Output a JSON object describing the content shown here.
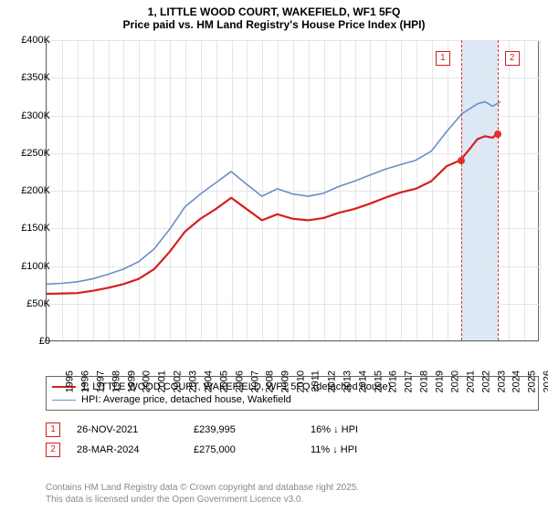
{
  "title": {
    "line1": "1, LITTLE WOOD COURT, WAKEFIELD, WF1 5FQ",
    "line2": "Price paid vs. HM Land Registry's House Price Index (HPI)"
  },
  "chart": {
    "type": "line",
    "background_color": "#ffffff",
    "grid_color": "#e5e5e5",
    "border_color": "#666666",
    "x_axis": {
      "min": 1995,
      "max": 2027,
      "ticks": [
        1995,
        1996,
        1997,
        1998,
        1999,
        2000,
        2001,
        2002,
        2003,
        2004,
        2005,
        2006,
        2007,
        2008,
        2009,
        2010,
        2011,
        2012,
        2013,
        2014,
        2015,
        2016,
        2017,
        2018,
        2019,
        2020,
        2021,
        2022,
        2023,
        2024,
        2025,
        2026,
        2027
      ],
      "label_fontsize": 11
    },
    "y_axis": {
      "min": 0,
      "max": 400000,
      "ticks": [
        0,
        50000,
        100000,
        150000,
        200000,
        250000,
        300000,
        350000,
        400000
      ],
      "tick_labels": [
        "£0",
        "£50K",
        "£100K",
        "£150K",
        "£200K",
        "£250K",
        "£300K",
        "£350K",
        "£400K"
      ],
      "label_fontsize": 11
    },
    "highlight_band": {
      "x_start": 2021.9,
      "x_end": 2024.25,
      "color": "#dce8f5"
    },
    "series": [
      {
        "id": "price_paid",
        "label": "1, LITTLE WOOD COURT, WAKEFIELD, WF1 5FQ (detached house)",
        "color": "#d81e1e",
        "line_width": 2.2,
        "points": [
          [
            1995,
            62000
          ],
          [
            1996,
            62500
          ],
          [
            1997,
            63000
          ],
          [
            1998,
            66000
          ],
          [
            1999,
            70000
          ],
          [
            2000,
            75000
          ],
          [
            2001,
            82000
          ],
          [
            2002,
            95000
          ],
          [
            2003,
            118000
          ],
          [
            2004,
            145000
          ],
          [
            2005,
            162000
          ],
          [
            2006,
            175000
          ],
          [
            2007,
            190000
          ],
          [
            2008,
            175000
          ],
          [
            2009,
            160000
          ],
          [
            2010,
            168000
          ],
          [
            2011,
            162000
          ],
          [
            2012,
            160000
          ],
          [
            2013,
            163000
          ],
          [
            2014,
            170000
          ],
          [
            2015,
            175000
          ],
          [
            2016,
            182000
          ],
          [
            2017,
            190000
          ],
          [
            2018,
            197000
          ],
          [
            2019,
            202000
          ],
          [
            2020,
            212000
          ],
          [
            2021,
            232000
          ],
          [
            2021.9,
            239995
          ],
          [
            2022.5,
            255000
          ],
          [
            2023,
            268000
          ],
          [
            2023.5,
            272000
          ],
          [
            2024,
            270000
          ],
          [
            2024.25,
            275000
          ]
        ]
      },
      {
        "id": "hpi",
        "label": "HPI: Average price, detached house, Wakefield",
        "color": "#6a8fc5",
        "line_width": 1.6,
        "points": [
          [
            1995,
            75000
          ],
          [
            1996,
            76000
          ],
          [
            1997,
            78000
          ],
          [
            1998,
            82000
          ],
          [
            1999,
            88000
          ],
          [
            2000,
            95000
          ],
          [
            2001,
            105000
          ],
          [
            2002,
            122000
          ],
          [
            2003,
            148000
          ],
          [
            2004,
            178000
          ],
          [
            2005,
            195000
          ],
          [
            2006,
            210000
          ],
          [
            2007,
            225000
          ],
          [
            2008,
            208000
          ],
          [
            2009,
            192000
          ],
          [
            2010,
            202000
          ],
          [
            2011,
            195000
          ],
          [
            2012,
            192000
          ],
          [
            2013,
            196000
          ],
          [
            2014,
            205000
          ],
          [
            2015,
            212000
          ],
          [
            2016,
            220000
          ],
          [
            2017,
            228000
          ],
          [
            2018,
            234000
          ],
          [
            2019,
            240000
          ],
          [
            2020,
            252000
          ],
          [
            2021,
            278000
          ],
          [
            2022,
            302000
          ],
          [
            2023,
            315000
          ],
          [
            2023.5,
            318000
          ],
          [
            2024,
            312000
          ],
          [
            2024.5,
            318000
          ]
        ]
      }
    ],
    "markers": [
      {
        "n": "1",
        "x": 2021.9,
        "y": 239995,
        "badge_y_offset": -22,
        "badge_x_offset": -28
      },
      {
        "n": "2",
        "x": 2024.25,
        "y": 275000,
        "badge_y_offset": -22,
        "badge_x_offset": 8
      }
    ],
    "marker_color": "#e03030",
    "marker_badge_border": "#d02020"
  },
  "legend": {
    "border_color": "#666666",
    "fontsize": 11
  },
  "sales": [
    {
      "n": "1",
      "date": "26-NOV-2021",
      "price": "£239,995",
      "delta": "16% ↓ HPI"
    },
    {
      "n": "2",
      "date": "28-MAR-2024",
      "price": "£275,000",
      "delta": "11% ↓ HPI"
    }
  ],
  "footer": {
    "line1": "Contains HM Land Registry data © Crown copyright and database right 2025.",
    "line2": "This data is licensed under the Open Government Licence v3.0."
  }
}
